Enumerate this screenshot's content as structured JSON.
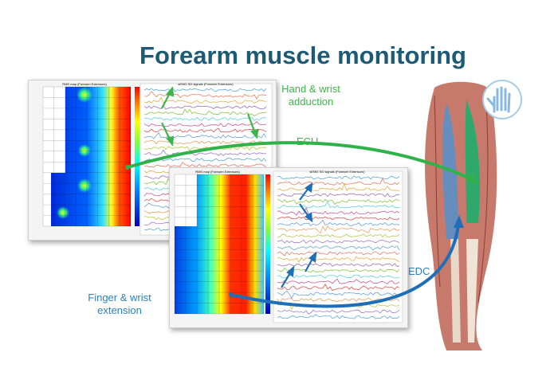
{
  "title": "Forearm muscle monitoring",
  "windows": [
    {
      "map_title": "RMS map (Forearm Extensors)",
      "signals_title": "sEMG SD signals (Forearm Extensors)"
    },
    {
      "map_title": "RMS map (Forearm Extensors)",
      "signals_title": "sEMG SD signals (Forearm Extensors)"
    }
  ],
  "labels": {
    "adduction": "Hand & wrist adduction",
    "ecu": "ECU",
    "edc": "EDC",
    "extension": "Finger & wrist extension"
  },
  "colors": {
    "title": "#1d5a76",
    "green": "#3db54a",
    "blue": "#2a7fc0"
  },
  "icons": [
    "hand-icon",
    "forearm-muscle-illustration"
  ]
}
